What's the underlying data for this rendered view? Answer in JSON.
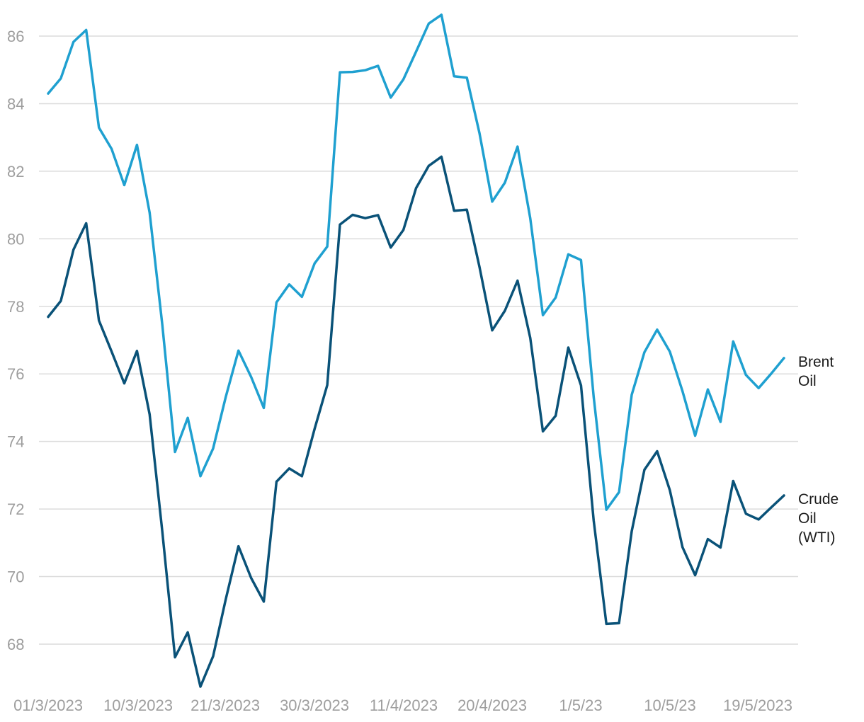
{
  "chart_data": {
    "type": "line",
    "title": "",
    "xlabel": "",
    "ylabel": "",
    "ylim": [
      66.7,
      86.8
    ],
    "yticks": [
      68,
      70,
      72,
      74,
      76,
      78,
      80,
      82,
      84,
      86
    ],
    "grid": true,
    "x_tick_labels": [
      "01/3/2023",
      "10/3/2023",
      "21/3/2023",
      "30/3/2023",
      "11/4/2023",
      "20/4/2023",
      "1/5/23",
      "10/5/23",
      "19/5/2023"
    ],
    "x": [
      "2023-03-01",
      "2023-03-02",
      "2023-03-03",
      "2023-03-06",
      "2023-03-07",
      "2023-03-08",
      "2023-03-09",
      "2023-03-10",
      "2023-03-13",
      "2023-03-14",
      "2023-03-15",
      "2023-03-16",
      "2023-03-17",
      "2023-03-20",
      "2023-03-21",
      "2023-03-22",
      "2023-03-23",
      "2023-03-24",
      "2023-03-27",
      "2023-03-28",
      "2023-03-29",
      "2023-03-30",
      "2023-03-31",
      "2023-04-03",
      "2023-04-04",
      "2023-04-05",
      "2023-04-06",
      "2023-04-10",
      "2023-04-11",
      "2023-04-12",
      "2023-04-13",
      "2023-04-14",
      "2023-04-17",
      "2023-04-18",
      "2023-04-19",
      "2023-04-20",
      "2023-04-21",
      "2023-04-24",
      "2023-04-25",
      "2023-04-26",
      "2023-04-27",
      "2023-04-28",
      "2023-05-01",
      "2023-05-02",
      "2023-05-03",
      "2023-05-04",
      "2023-05-05",
      "2023-05-08",
      "2023-05-09",
      "2023-05-10",
      "2023-05-11",
      "2023-05-12",
      "2023-05-15",
      "2023-05-16",
      "2023-05-17",
      "2023-05-18",
      "2023-05-19",
      "2023-05-22",
      "2023-05-23"
    ],
    "series": [
      {
        "name": "Brent\nOil",
        "color": "#1fa0d0",
        "values": [
          84.3,
          84.75,
          85.83,
          86.18,
          83.29,
          82.66,
          81.59,
          82.78,
          80.77,
          77.45,
          73.69,
          74.7,
          72.97,
          73.79,
          75.32,
          76.69,
          75.91,
          74.99,
          78.12,
          78.65,
          78.28,
          79.27,
          79.77,
          84.93,
          84.94,
          84.99,
          85.12,
          84.18,
          84.72,
          85.54,
          86.37,
          86.63,
          84.81,
          84.77,
          83.12,
          81.1,
          81.66,
          82.73,
          80.61,
          77.74,
          78.26,
          79.54,
          79.37,
          75.32,
          71.98,
          72.5,
          75.38,
          76.64,
          77.31,
          76.66,
          75.49,
          74.17,
          75.54,
          74.58,
          76.96,
          75.97,
          75.58,
          76.01,
          76.47
        ]
      },
      {
        "name": "Crude\nOil\n(WTI)",
        "color": "#0a5278",
        "values": [
          77.69,
          78.16,
          79.68,
          80.46,
          77.58,
          76.66,
          75.72,
          76.68,
          74.8,
          71.33,
          67.61,
          68.35,
          66.74,
          67.64,
          69.33,
          70.9,
          69.96,
          69.26,
          72.81,
          73.2,
          72.97,
          74.37,
          75.67,
          80.42,
          80.71,
          80.61,
          80.7,
          79.74,
          80.26,
          81.5,
          82.16,
          82.43,
          80.83,
          80.86,
          79.16,
          77.29,
          77.87,
          78.76,
          77.07,
          74.3,
          74.76,
          76.78,
          75.66,
          71.66,
          68.6,
          68.62,
          71.34,
          73.16,
          73.71,
          72.56,
          70.87,
          70.04,
          71.11,
          70.86,
          72.83,
          71.86,
          71.69,
          72.05,
          72.4
        ]
      }
    ]
  }
}
